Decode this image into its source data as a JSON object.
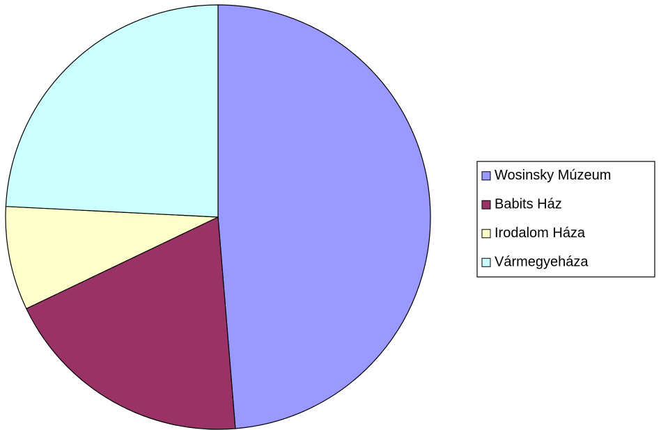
{
  "chart_data": {
    "type": "pie",
    "categories": [
      "Wosinsky Múzeum",
      "Babits Ház",
      "Irodalom Háza",
      "Vármegyeháza"
    ],
    "values": [
      48.7,
      19.2,
      7.9,
      24.2
    ],
    "colors": [
      "#9999ff",
      "#993366",
      "#ffffcc",
      "#ccffff"
    ],
    "legend": "right"
  }
}
